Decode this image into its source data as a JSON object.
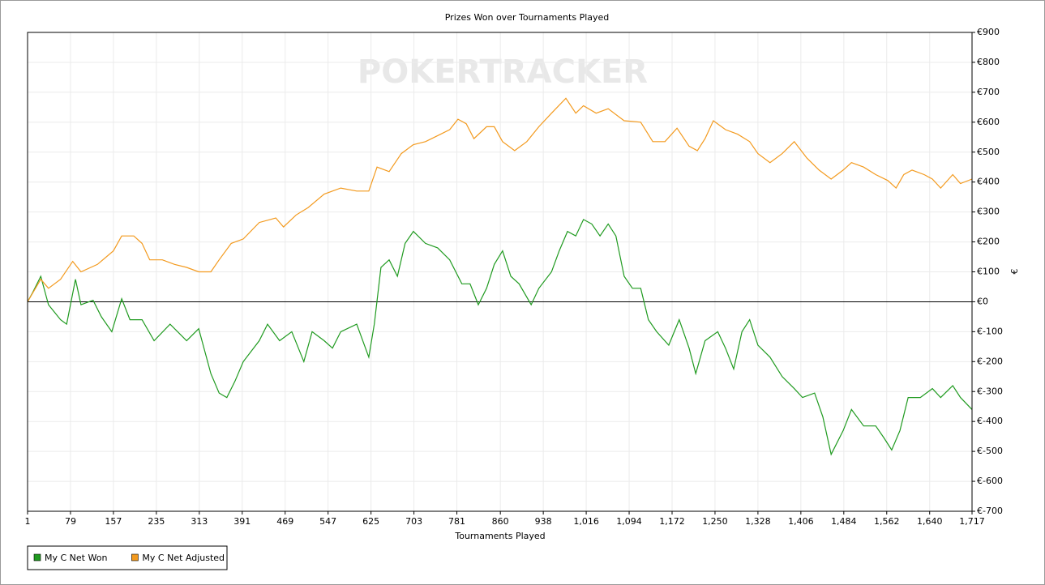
{
  "chart_data": {
    "type": "line",
    "title": "Prizes Won over Tournaments Played",
    "watermark": "POKERTRACKER",
    "x_label": "Tournaments Played",
    "y_label": "€",
    "xlim": [
      1,
      1717
    ],
    "xticks": [
      1,
      79,
      157,
      235,
      313,
      391,
      469,
      547,
      625,
      703,
      781,
      860,
      938,
      {
        "value": 1016,
        "label": "1,016"
      },
      {
        "value": 1094,
        "label": "1,094"
      },
      {
        "value": 1172,
        "label": "1,172"
      },
      {
        "value": 1250,
        "label": "1,250"
      },
      {
        "value": 1328,
        "label": "1,328"
      },
      {
        "value": 1406,
        "label": "1,406"
      },
      {
        "value": 1484,
        "label": "1,484"
      },
      {
        "value": 1562,
        "label": "1,562"
      },
      {
        "value": 1640,
        "label": "1,640"
      },
      {
        "value": 1717,
        "label": "1,717"
      }
    ],
    "ylim": [
      -700,
      900
    ],
    "yticks": [
      {
        "value": -700,
        "label": "€-700"
      },
      {
        "value": -600,
        "label": "€-600"
      },
      {
        "value": -500,
        "label": "€-500"
      },
      {
        "value": -400,
        "label": "€-400"
      },
      {
        "value": -300,
        "label": "€-300"
      },
      {
        "value": -200,
        "label": "€-200"
      },
      {
        "value": -100,
        "label": "€-100"
      },
      {
        "value": 0,
        "label": "€0"
      },
      {
        "value": 100,
        "label": "€100"
      },
      {
        "value": 200,
        "label": "€200"
      },
      {
        "value": 300,
        "label": "€300"
      },
      {
        "value": 400,
        "label": "€400"
      },
      {
        "value": 500,
        "label": "€500"
      },
      {
        "value": 600,
        "label": "€600"
      },
      {
        "value": 700,
        "label": "€700"
      },
      {
        "value": 800,
        "label": "€800"
      },
      {
        "value": 900,
        "label": "€900"
      }
    ],
    "grid": true,
    "legend": "bottom-left",
    "series": [
      {
        "name": "My C Net Won",
        "color": "#1f9a1f",
        "x": [
          1,
          10,
          25,
          39,
          61,
          72,
          88,
          98,
          120,
          135,
          154,
          172,
          187,
          209,
          231,
          260,
          290,
          312,
          334,
          349,
          363,
          378,
          393,
          422,
          437,
          459,
          481,
          503,
          518,
          540,
          555,
          570,
          599,
          621,
          631,
          643,
          658,
          673,
          687,
          702,
          724,
          746,
          768,
          790,
          805,
          820,
          835,
          849,
          864,
          879,
          894,
          916,
          930,
          953,
          967,
          982,
          997,
          1011,
          1026,
          1041,
          1056,
          1070,
          1085,
          1100,
          1115,
          1129,
          1144,
          1166,
          1185,
          1203,
          1215,
          1232,
          1255,
          1269,
          1284,
          1299,
          1313,
          1328,
          1350,
          1372,
          1394,
          1409,
          1431,
          1446,
          1461,
          1483,
          1498,
          1520,
          1542,
          1557,
          1571,
          1586,
          1601,
          1623,
          1645,
          1660,
          1682,
          1696,
          1717
        ],
        "values": [
          0,
          30,
          85,
          -10,
          -60,
          -75,
          75,
          -10,
          5,
          -50,
          -100,
          10,
          -60,
          -60,
          -130,
          -75,
          -130,
          -90,
          -240,
          -305,
          -320,
          -265,
          -200,
          -130,
          -75,
          -130,
          -100,
          -200,
          -100,
          -130,
          -155,
          -100,
          -75,
          -185,
          -75,
          115,
          140,
          85,
          195,
          235,
          195,
          180,
          140,
          60,
          60,
          -10,
          45,
          125,
          170,
          85,
          60,
          -10,
          45,
          100,
          170,
          235,
          220,
          275,
          260,
          220,
          260,
          220,
          85,
          45,
          45,
          -60,
          -100,
          -145,
          -60,
          -155,
          -240,
          -130,
          -100,
          -155,
          -225,
          -100,
          -60,
          -145,
          -185,
          -250,
          -290,
          -320,
          -305,
          -385,
          -510,
          -430,
          -360,
          -415,
          -415,
          -455,
          -495,
          -430,
          -320,
          -320,
          -290,
          -320,
          -280,
          -320,
          -360
        ]
      },
      {
        "name": "My C Net Adjusted",
        "color": "#f39a1e",
        "x": [
          1,
          25,
          39,
          61,
          83,
          98,
          128,
          157,
          172,
          194,
          209,
          223,
          246,
          268,
          290,
          312,
          334,
          349,
          371,
          393,
          422,
          452,
          466,
          489,
          511,
          540,
          570,
          599,
          621,
          636,
          658,
          680,
          702,
          724,
          746,
          768,
          783,
          798,
          812,
          835,
          849,
          864,
          886,
          908,
          930,
          953,
          979,
          997,
          1011,
          1034,
          1056,
          1085,
          1115,
          1137,
          1159,
          1181,
          1203,
          1218,
          1232,
          1247,
          1269,
          1291,
          1313,
          1328,
          1350,
          1372,
          1394,
          1417,
          1439,
          1461,
          1483,
          1498,
          1520,
          1542,
          1564,
          1579,
          1593,
          1608,
          1630,
          1645,
          1660,
          1682,
          1696,
          1717
        ],
        "values": [
          0,
          75,
          45,
          75,
          135,
          100,
          125,
          170,
          220,
          220,
          195,
          140,
          140,
          125,
          115,
          100,
          100,
          140,
          195,
          210,
          265,
          280,
          250,
          290,
          315,
          360,
          380,
          370,
          370,
          450,
          435,
          495,
          525,
          535,
          555,
          575,
          610,
          595,
          545,
          585,
          585,
          535,
          505,
          535,
          585,
          630,
          680,
          630,
          655,
          630,
          645,
          605,
          600,
          535,
          535,
          580,
          520,
          505,
          545,
          605,
          575,
          560,
          535,
          495,
          465,
          495,
          535,
          480,
          440,
          410,
          440,
          465,
          450,
          425,
          405,
          380,
          425,
          440,
          425,
          410,
          380,
          425,
          395,
          410
        ]
      }
    ]
  }
}
